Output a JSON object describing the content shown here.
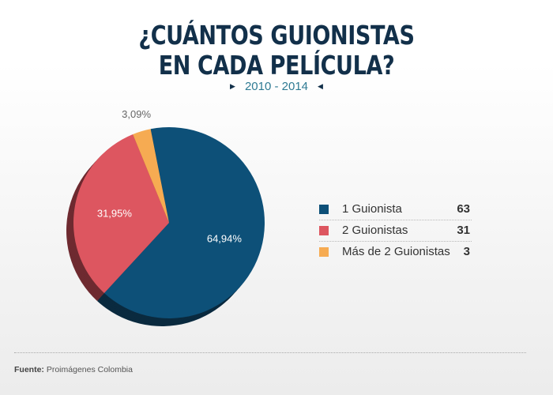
{
  "title_line1": "¿CUÁNTOS GUIONISTAS",
  "title_line2": "EN CADA PELÍCULA?",
  "subtitle": "2010 - 2014",
  "source_label": "Fuente:",
  "source_text": "Proimágenes Colombia",
  "chart_data": {
    "type": "pie",
    "title": "¿CUÁNTOS GUIONISTAS EN CADA PELÍCULA?",
    "subtitle": "2010 - 2014",
    "slices": [
      {
        "label": "1 Guionista",
        "value": 63,
        "percent_label": "64,94%",
        "color": "#0d5078",
        "shadow": "#0a2a3f"
      },
      {
        "label": "2 Guionistas",
        "value": 31,
        "percent_label": "31,95%",
        "color": "#dd5660",
        "shadow": "#6e2a30"
      },
      {
        "label": "Más de 2 Guionistas",
        "value": 3,
        "percent_label": "3,09%",
        "color": "#f6ab52",
        "shadow": "#8a5b24"
      }
    ],
    "legend_position": "right"
  }
}
